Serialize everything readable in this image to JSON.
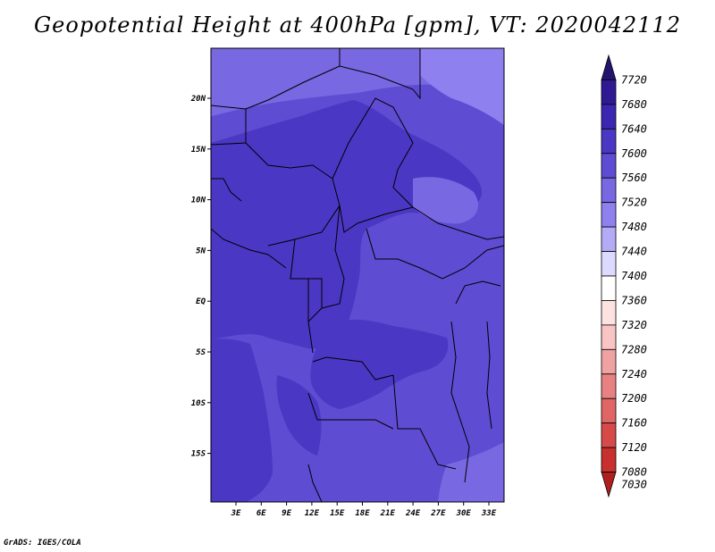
{
  "title": "Geopotential Height at 400hPa [gpm], VT: 2020042112",
  "credit": "GrADS: IGES/COLA",
  "map": {
    "lat_labels": [
      "20N",
      "15N",
      "10N",
      "5N",
      "EQ",
      "5S",
      "10S",
      "15S"
    ],
    "lon_labels": [
      "3E",
      "6E",
      "9E",
      "12E",
      "15E",
      "18E",
      "21E",
      "24E",
      "27E",
      "30E",
      "33E"
    ],
    "colors": {
      "c7480": "#8f80f0",
      "c7520": "#7868e2",
      "c7560": "#5e4cd2",
      "c7600": "#4a37c4"
    }
  },
  "colorbar": {
    "labels": [
      "7720",
      "7680",
      "7640",
      "7600",
      "7560",
      "7520",
      "7480",
      "7440",
      "7400",
      "7360",
      "7320",
      "7280",
      "7240",
      "7200",
      "7160",
      "7120",
      "7080",
      "7030"
    ],
    "colors": [
      "#231470",
      "#2f1a94",
      "#3b26b2",
      "#4a37c4",
      "#5e4cd2",
      "#7868e2",
      "#8f80f0",
      "#b4aaf6",
      "#dedaff",
      "#ffffff",
      "#fde2e2",
      "#f8c4c4",
      "#f0a2a2",
      "#e88282",
      "#e06666",
      "#d84a4a",
      "#c83030",
      "#b01e1e"
    ]
  }
}
